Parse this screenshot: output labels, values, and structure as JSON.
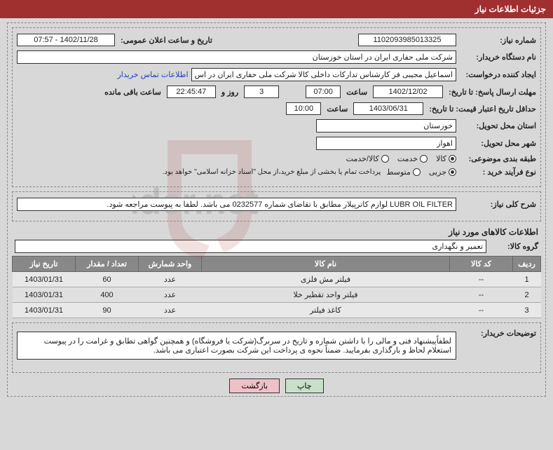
{
  "header": {
    "title": "جزئیات اطلاعات نیاز"
  },
  "fields": {
    "req_no_lbl": "شماره نیاز:",
    "req_no": "1102093985013325",
    "announce_lbl": "تاریخ و ساعت اعلان عمومی:",
    "announce": "1402/11/28 - 07:57",
    "buyer_lbl": "نام دستگاه خریدار:",
    "buyer": "شرکت ملی حفاری ایران در استان خوزستان",
    "creator_lbl": "ایجاد کننده درخواست:",
    "creator": "اسماعیل مجیبی فر کارشناس تدارکات داخلی کالا شرکت ملی حفاری ایران در اس",
    "contact_link": "اطلاعات تماس خریدار",
    "deadline_lbl": "مهلت ارسال پاسخ: تا تاریخ:",
    "deadline_date": "1402/12/02",
    "time_lbl": "ساعت",
    "deadline_time": "07:00",
    "days": "3",
    "days_lbl": "روز و",
    "countdown": "22:45:47",
    "remain_lbl": "ساعت باقی مانده",
    "validity_lbl": "حداقل تاریخ اعتبار قیمت: تا تاریخ:",
    "validity_date": "1403/06/31",
    "validity_time": "10:00",
    "province_lbl": "استان محل تحویل:",
    "province": "خوزستان",
    "city_lbl": "شهر محل تحویل:",
    "city": "اهواز",
    "cat_lbl": "طبقه بندی موضوعی:",
    "cat_goods": "کالا",
    "cat_service": "خدمت",
    "cat_both": "کالا/خدمت",
    "proc_lbl": "نوع فرآیند خرید :",
    "proc_minor": "جزیی",
    "proc_medium": "متوسط",
    "proc_note": "پرداخت تمام یا بخشی از مبلغ خرید،از محل \"اسناد خزانه اسلامی\" خواهد بود.",
    "summary_lbl": "شرح کلی نیاز:",
    "summary": "LUBR OIL FILTER لوازم کاترپیلار مطابق با تقاضای شماره 0232577 می باشد. لطفا به پیوست مراجعه شود.",
    "goods_title": "اطلاعات کالاهای مورد نیاز",
    "group_lbl": "گروه کالا:",
    "group": "تعمیر و نگهداری",
    "buyer_desc_lbl": "توضیحات خریدار:",
    "buyer_desc": "لطفاًپیشنهاد فنی و مالی را با داشتن شماره و تاریخ در سربرگ(شرکت یا فروشگاه) و همچنین گواهی تطابق و غرامت را در پیوست استعلام لحاظ و بارگذاری بفرمایید. ضمناً نحوه ی پرداخت این شرکت بصورت اعتباری می باشد."
  },
  "table": {
    "cols": [
      "ردیف",
      "کد کالا",
      "نام کالا",
      "واحد شمارش",
      "تعداد / مقدار",
      "تاریخ نیاز"
    ],
    "rows": [
      [
        "1",
        "--",
        "فیلتر مش فلزی",
        "عدد",
        "60",
        "1403/01/31"
      ],
      [
        "2",
        "--",
        "فیلتر واحد تقطیر خلا",
        "عدد",
        "400",
        "1403/01/31"
      ],
      [
        "3",
        "--",
        "کاغذ فیلتر",
        "عدد",
        "90",
        "1403/01/31"
      ]
    ]
  },
  "buttons": {
    "print": "چاپ",
    "back": "بازگشت"
  }
}
